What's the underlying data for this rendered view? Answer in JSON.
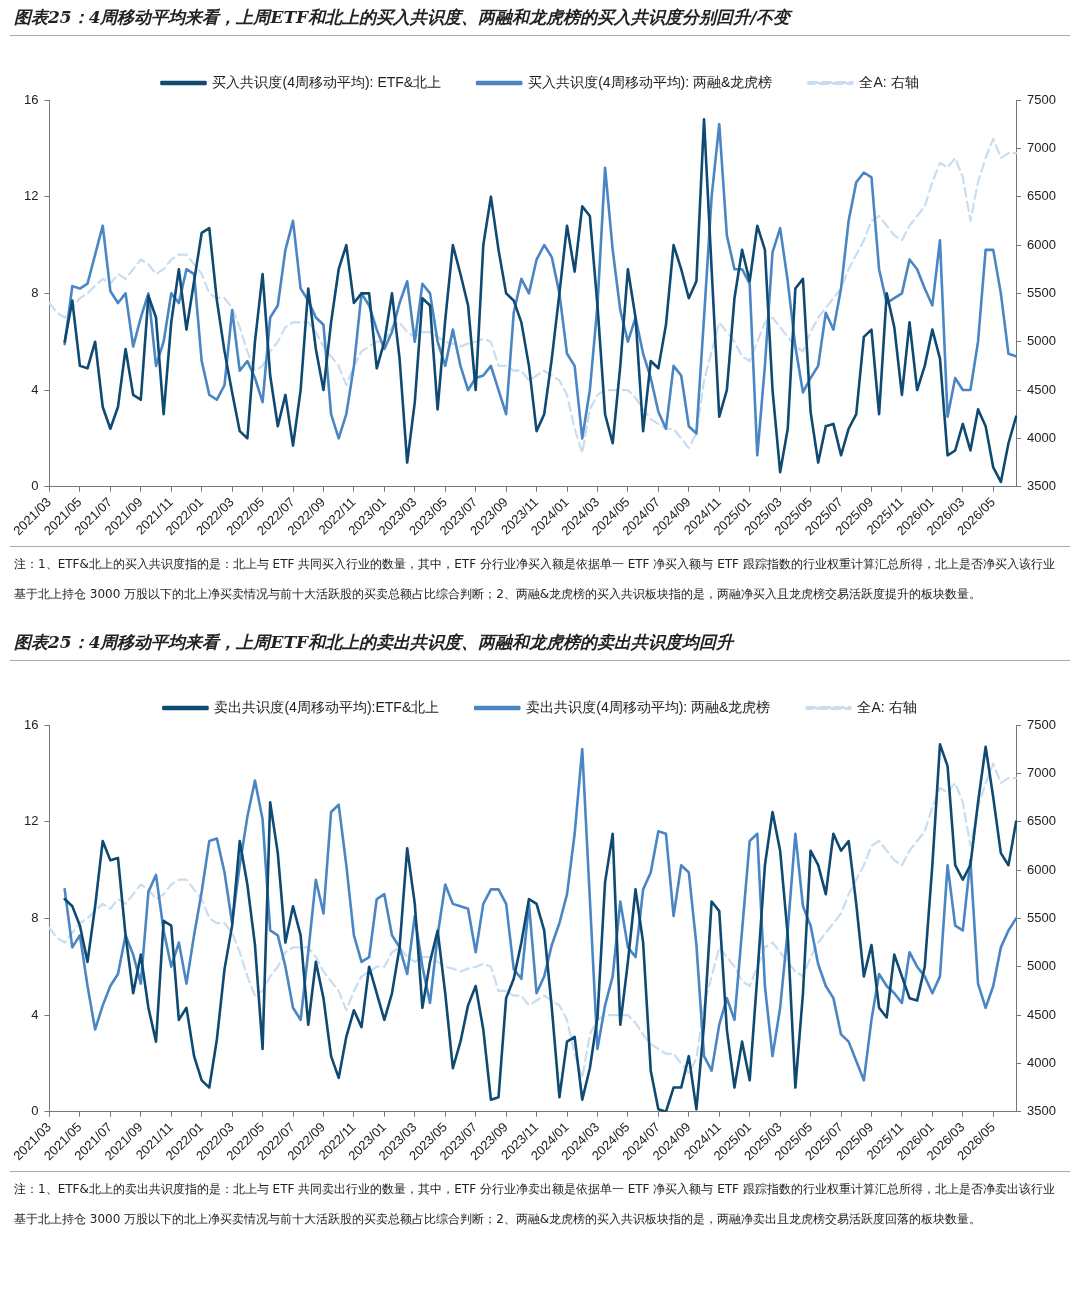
{
  "chart_data": [
    {
      "type": "line",
      "title": "图表25：4周移动平均来看，上周ETF和北上的买入共识度、两融和龙虎榜的买入共识度分别回升/不变",
      "categories": [
        "2021/03",
        null,
        null,
        null,
        "2021/05",
        null,
        null,
        null,
        "2021/07",
        null,
        null,
        null,
        "2021/09",
        null,
        null,
        null,
        "2021/11",
        null,
        null,
        null,
        "2022/01",
        null,
        null,
        null,
        "2022/03",
        null,
        null,
        null,
        "2022/05",
        null,
        null,
        null,
        "2022/07",
        null,
        null,
        null,
        "2022/09",
        null,
        null,
        null,
        "2022/11",
        null,
        null,
        null,
        "2023/01",
        null,
        null,
        null,
        "2023/03",
        null,
        null,
        null,
        "2023/05",
        null,
        null,
        null,
        "2023/07",
        null,
        null,
        null,
        "2023/09",
        null,
        null,
        null,
        "2023/11",
        null,
        null,
        null,
        "2024/01",
        null,
        null,
        null,
        "2024/03",
        null,
        null,
        null,
        "2024/05",
        null,
        null,
        null,
        "2024/07",
        null,
        null,
        null,
        "2024/09",
        null,
        null,
        null,
        "2024/11",
        null,
        null,
        null,
        "2025/01",
        null,
        null,
        null,
        "2025/03",
        null,
        null,
        null,
        "2025/05",
        null,
        null,
        null,
        "2025/07",
        null,
        null,
        null,
        "2025/09",
        null,
        null,
        null,
        "2025/11",
        null,
        null,
        null,
        "2026/01",
        null,
        null,
        null,
        "2026/03",
        null,
        null,
        null,
        "2026/05",
        null,
        null,
        null
      ],
      "series": [
        {
          "name": "买入共识度(4周移动平均): ETF&北上",
          "color": "#0e4a71",
          "values": [
            null,
            null,
            6.0,
            7.7,
            5.0,
            4.9,
            6.0,
            3.3,
            2.4,
            3.3,
            5.7,
            3.8,
            3.6,
            7.9,
            7.0,
            3.0,
            6.8,
            9.0,
            6.5,
            8.5,
            10.5,
            10.7,
            7.7,
            5.6,
            3.9,
            2.3,
            2.0,
            6.0,
            8.8,
            4.6,
            2.5,
            3.8,
            1.7,
            4.0,
            8.2,
            5.7,
            4.0,
            6.8,
            9.0,
            10.0,
            7.6,
            8.0,
            8.0,
            4.9,
            6.0,
            8.0,
            5.3,
            1.0,
            3.5,
            7.8,
            7.5,
            3.2,
            6.9,
            10.0,
            8.8,
            7.5,
            4.0,
            10.0,
            12.0,
            9.8,
            8.0,
            7.7,
            6.8,
            5.0,
            2.3,
            3.0,
            5.3,
            8.0,
            10.8,
            8.9,
            11.6,
            11.2,
            7.5,
            3.0,
            1.8,
            5.0,
            9.0,
            7.0,
            2.3,
            5.2,
            4.9,
            6.7,
            10.0,
            9.0,
            7.8,
            8.5,
            15.2,
            9.0,
            2.9,
            4.0,
            7.8,
            9.8,
            8.5,
            10.8,
            9.8,
            4.0,
            0.6,
            2.4,
            8.2,
            8.6,
            3.1,
            1.0,
            2.5,
            2.6,
            1.3,
            2.4,
            3.0,
            6.2,
            6.5,
            3.0,
            8.0,
            6.6,
            3.8,
            6.8,
            4.0,
            5.0,
            6.5,
            5.3,
            1.3,
            1.5,
            2.6,
            1.5,
            3.2,
            2.5,
            0.8,
            0.2,
            1.8,
            2.9
          ]
        },
        {
          "name": "买入共识度(4周移动平均): 两融&龙虎榜",
          "color": "#4a86c4",
          "values": [
            null,
            null,
            5.9,
            8.3,
            8.2,
            8.4,
            9.6,
            10.8,
            8.1,
            7.6,
            8.0,
            5.8,
            7.0,
            8.0,
            5.0,
            6.0,
            8.0,
            7.6,
            9.0,
            8.8,
            5.2,
            3.8,
            3.6,
            4.2,
            7.3,
            4.8,
            5.2,
            4.5,
            3.5,
            7.0,
            7.5,
            9.8,
            11.0,
            8.2,
            7.7,
            7.0,
            6.7,
            3.0,
            2.0,
            3.0,
            5.0,
            8.0,
            7.5,
            6.5,
            5.7,
            6.4,
            7.6,
            8.5,
            6.0,
            8.4,
            8.0,
            6.0,
            5.0,
            6.5,
            5.0,
            4.0,
            4.5,
            4.6,
            5.0,
            4.0,
            3.0,
            7.2,
            8.6,
            8.0,
            9.4,
            10.0,
            9.5,
            8.0,
            5.5,
            5.0,
            2.0,
            4.0,
            7.5,
            13.2,
            9.8,
            7.3,
            6.0,
            7.0,
            5.5,
            4.5,
            3.1,
            2.4,
            5.0,
            4.6,
            2.5,
            2.2,
            7.0,
            12.0,
            15.0,
            10.4,
            9.0,
            9.0,
            8.4,
            1.3,
            5.0,
            9.7,
            10.7,
            8.5,
            5.8,
            3.9,
            4.5,
            5.0,
            7.2,
            6.5,
            8.2,
            11.0,
            12.6,
            13.0,
            12.8,
            9.0,
            7.6,
            7.8,
            8.0,
            9.4,
            9.0,
            8.2,
            7.5,
            10.2,
            2.9,
            4.5,
            4.0,
            4.0,
            6.0,
            9.8,
            9.8,
            8.0,
            5.5,
            5.4
          ]
        },
        {
          "name": "全A: 右轴",
          "color": "#c8ddf0",
          "axis": "y2",
          "line_style": "dashed",
          "values": [
            5400,
            5300,
            5250,
            5350,
            5450,
            5500,
            5580,
            5650,
            5600,
            5700,
            5650,
            5750,
            5850,
            5800,
            5700,
            5750,
            5850,
            5900,
            5900,
            5800,
            5700,
            5500,
            5450,
            5450,
            5350,
            5150,
            4900,
            4700,
            4750,
            4900,
            5000,
            5150,
            5200,
            5200,
            5200,
            5100,
            4950,
            4850,
            4750,
            4550,
            4750,
            4900,
            4950,
            5000,
            5000,
            5150,
            5200,
            5100,
            5050,
            5100,
            5100,
            5050,
            5000,
            4980,
            4950,
            4980,
            5000,
            5030,
            5000,
            4750,
            4750,
            4700,
            4700,
            4600,
            4650,
            4700,
            4650,
            4600,
            4450,
            4100,
            3850,
            4300,
            4450,
            4500,
            4500,
            4500,
            4500,
            4420,
            4300,
            4200,
            4150,
            4100,
            4100,
            4000,
            3900,
            4050,
            4600,
            4900,
            5200,
            5100,
            5000,
            4850,
            4800,
            5000,
            5200,
            5250,
            5150,
            5050,
            4950,
            4900,
            5100,
            5250,
            5350,
            5450,
            5550,
            5750,
            5900,
            6050,
            6250,
            6300,
            6200,
            6100,
            6050,
            6200,
            6300,
            6400,
            6650,
            6850,
            6800,
            6900,
            6700,
            6250,
            6650,
            6900,
            7100,
            6900,
            6950,
            6950
          ]
        }
      ],
      "ylim": [
        0,
        16
      ],
      "yticks": [
        0,
        4,
        8,
        12,
        16
      ],
      "y2lim": [
        3500,
        7500
      ],
      "y2ticks": [
        3500,
        4000,
        4500,
        5000,
        5500,
        6000,
        6500,
        7000,
        7500
      ],
      "legend": "top",
      "annotations": [
        "注：1、ETF&北上的买入共识度指的是：北上与 ETF 共同买入行业的数量，其中，ETF 分行业净买入额是依据单一 ETF 净买入额与 ETF 跟踪指数的行业权重计算汇总所得，北上是否净买入该行业基于北上持仓 3000 万股以下的北上净买卖情况与前十大活跃股的买卖总额占比综合判断；2、两融&龙虎榜的买入共识板块指的是，两融净买入且龙虎榜交易活跃度提升的板块数量。"
      ]
    },
    {
      "type": "line",
      "title": "图表25：4周移动平均来看，上周ETF和北上的卖出共识度、两融和龙虎榜的卖出共识度均回升",
      "categories": [
        "2021/03",
        null,
        null,
        null,
        "2021/05",
        null,
        null,
        null,
        "2021/07",
        null,
        null,
        null,
        "2021/09",
        null,
        null,
        null,
        "2021/11",
        null,
        null,
        null,
        "2022/01",
        null,
        null,
        null,
        "2022/03",
        null,
        null,
        null,
        "2022/05",
        null,
        null,
        null,
        "2022/07",
        null,
        null,
        null,
        "2022/09",
        null,
        null,
        null,
        "2022/11",
        null,
        null,
        null,
        "2023/01",
        null,
        null,
        null,
        "2023/03",
        null,
        null,
        null,
        "2023/05",
        null,
        null,
        null,
        "2023/07",
        null,
        null,
        null,
        "2023/09",
        null,
        null,
        null,
        "2023/11",
        null,
        null,
        null,
        "2024/01",
        null,
        null,
        null,
        "2024/03",
        null,
        null,
        null,
        "2024/05",
        null,
        null,
        null,
        "2024/07",
        null,
        null,
        null,
        "2024/09",
        null,
        null,
        null,
        "2024/11",
        null,
        null,
        null,
        "2025/01",
        null,
        null,
        null,
        "2025/03",
        null,
        null,
        null,
        "2025/05",
        null,
        null,
        null,
        "2025/07",
        null,
        null,
        null,
        "2025/09",
        null,
        null,
        null,
        "2025/11",
        null,
        null,
        null,
        "2026/01",
        null,
        null,
        null,
        "2026/03",
        null,
        null,
        null,
        "2026/05",
        null,
        null,
        null
      ],
      "series": [
        {
          "name": "卖出共识度(4周移动平均):ETF&北上",
          "color": "#0e4a71",
          "values": [
            null,
            null,
            8.8,
            8.5,
            7.7,
            6.2,
            8.5,
            11.2,
            10.4,
            10.5,
            7.3,
            4.9,
            6.5,
            4.3,
            2.9,
            7.9,
            7.7,
            3.8,
            4.3,
            2.3,
            1.3,
            1.0,
            3.0,
            5.9,
            7.7,
            11.2,
            9.4,
            6.9,
            2.6,
            12.8,
            10.7,
            7.0,
            8.5,
            7.3,
            3.6,
            6.2,
            4.7,
            2.3,
            1.4,
            3.1,
            4.2,
            3.5,
            6.0,
            4.9,
            3.8,
            4.9,
            6.8,
            10.9,
            8.6,
            4.3,
            6.2,
            7.5,
            4.9,
            1.8,
            2.9,
            4.4,
            5.2,
            3.4,
            0.5,
            0.6,
            4.7,
            5.5,
            7.0,
            8.8,
            8.6,
            7.5,
            4.3,
            0.6,
            2.9,
            3.1,
            0.5,
            1.8,
            3.9,
            9.5,
            11.5,
            3.6,
            6.2,
            9.2,
            7.0,
            1.7,
            0.1,
            0,
            1.0,
            1.0,
            2.3,
            0.1,
            3.6,
            8.7,
            8.3,
            3.4,
            1.0,
            2.9,
            1.3,
            5.6,
            10.2,
            12.4,
            10.8,
            7.3,
            1.0,
            4.9,
            10.8,
            10.2,
            9.0,
            11.5,
            10.8,
            11.2,
            8.6,
            5.6,
            6.9,
            4.3,
            3.9,
            6.5,
            5.6,
            4.7,
            4.6,
            6.0,
            10.2,
            15.2,
            14.3,
            10.2,
            9.6,
            10.2,
            12.8,
            15.1,
            13.0,
            10.7,
            10.2,
            12.0
          ]
        },
        {
          "name": "卖出共识度(4周移动平均): 两融&龙虎榜",
          "color": "#4a86c4",
          "values": [
            null,
            null,
            9.2,
            6.8,
            7.3,
            5.2,
            3.4,
            4.4,
            5.2,
            5.7,
            7.3,
            6.5,
            5.3,
            9.1,
            9.8,
            7.5,
            6.0,
            7.0,
            5.3,
            7.3,
            9.1,
            11.2,
            11.3,
            9.9,
            7.8,
            10.2,
            12.2,
            13.7,
            12.1,
            7.5,
            7.3,
            6.0,
            4.3,
            3.8,
            6.6,
            9.6,
            8.2,
            12.4,
            12.7,
            10.2,
            7.3,
            6.2,
            6.4,
            8.8,
            9.0,
            7.3,
            6.8,
            5.7,
            8.1,
            6.0,
            4.5,
            7.3,
            9.4,
            8.6,
            8.5,
            8.4,
            6.6,
            8.6,
            9.2,
            9.2,
            8.6,
            5.9,
            5.5,
            8.6,
            4.9,
            5.6,
            6.9,
            7.8,
            9.0,
            11.5,
            15.0,
            8.8,
            2.6,
            4.4,
            5.6,
            8.7,
            6.8,
            6.4,
            9.2,
            9.9,
            11.6,
            11.5,
            8.1,
            10.2,
            9.9,
            6.9,
            2.3,
            1.7,
            3.6,
            4.7,
            3.8,
            7.5,
            11.2,
            11.5,
            5.2,
            2.3,
            4.3,
            7.5,
            11.5,
            8.5,
            7.7,
            6.1,
            5.2,
            4.7,
            3.2,
            2.9,
            2.1,
            1.3,
            3.8,
            5.7,
            5.2,
            4.9,
            4.5,
            6.6,
            6.0,
            5.6,
            4.9,
            5.6,
            10.2,
            7.7,
            7.5,
            10.4,
            5.3,
            4.3,
            5.2,
            6.8,
            7.5,
            8.0
          ]
        },
        {
          "name": "全A: 右轴",
          "color": "#c8ddf0",
          "axis": "y2",
          "line_style": "dashed",
          "values": [
            5400,
            5300,
            5250,
            5350,
            5450,
            5500,
            5580,
            5650,
            5600,
            5700,
            5650,
            5750,
            5850,
            5800,
            5700,
            5750,
            5850,
            5900,
            5900,
            5800,
            5700,
            5500,
            5450,
            5450,
            5350,
            5150,
            4900,
            4700,
            4750,
            4900,
            5000,
            5150,
            5200,
            5200,
            5200,
            5100,
            4950,
            4850,
            4750,
            4550,
            4750,
            4900,
            4950,
            5000,
            5000,
            5150,
            5200,
            5100,
            5050,
            5100,
            5100,
            5050,
            5000,
            4980,
            4950,
            4980,
            5000,
            5030,
            5000,
            4750,
            4750,
            4700,
            4700,
            4600,
            4650,
            4700,
            4650,
            4600,
            4450,
            4100,
            3850,
            4300,
            4450,
            4500,
            4500,
            4500,
            4500,
            4420,
            4300,
            4200,
            4150,
            4100,
            4100,
            4000,
            3900,
            4050,
            4600,
            4900,
            5200,
            5100,
            5000,
            4850,
            4800,
            5000,
            5200,
            5250,
            5150,
            5050,
            4950,
            4900,
            5100,
            5250,
            5350,
            5450,
            5550,
            5750,
            5900,
            6050,
            6250,
            6300,
            6200,
            6100,
            6050,
            6200,
            6300,
            6400,
            6650,
            6850,
            6800,
            6900,
            6700,
            6250,
            6650,
            6900,
            7100,
            6900,
            6950,
            6950
          ]
        }
      ],
      "ylim": [
        0,
        16
      ],
      "yticks": [
        0,
        4,
        8,
        12,
        16
      ],
      "y2lim": [
        3500,
        7500
      ],
      "y2ticks": [
        3500,
        4000,
        4500,
        5000,
        5500,
        6000,
        6500,
        7000,
        7500
      ],
      "legend": "top",
      "annotations": [
        "注：1、ETF&北上的卖出共识度指的是：北上与 ETF 共同卖出行业的数量，其中，ETF 分行业净卖出额是依据单一 ETF 净买入额与 ETF 跟踪指数的行业权重计算汇总所得，北上是否净卖出该行业基于北上持仓 3000 万股以下的北上净买卖情况与前十大活跃股的买卖总额占比综合判断；2、两融&龙虎榜的买入共识板块指的是，两融净卖出且龙虎榜交易活跃度回落的板块数量。"
      ]
    }
  ]
}
